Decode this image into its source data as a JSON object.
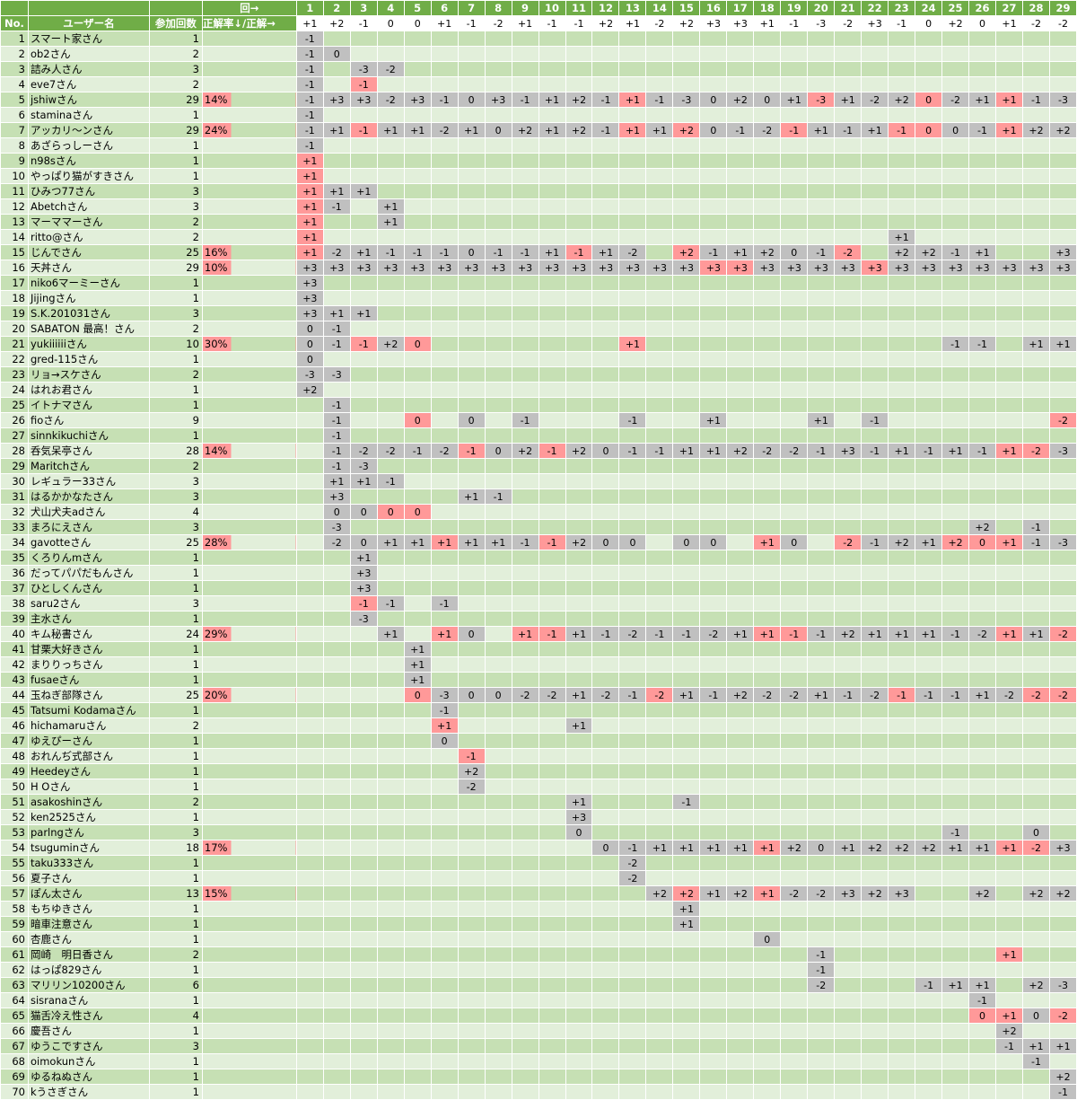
{
  "header": {
    "round_arrow": "回→",
    "no": "No.",
    "user": "ユーザー名",
    "count": "参加回数",
    "rate": "正解率↓/正解→",
    "rounds": [
      "1",
      "2",
      "3",
      "4",
      "5",
      "6",
      "7",
      "8",
      "9",
      "10",
      "11",
      "12",
      "13",
      "14",
      "15",
      "16",
      "17",
      "18",
      "19",
      "20",
      "21",
      "22",
      "23",
      "24",
      "25",
      "26",
      "27",
      "28",
      "29"
    ]
  },
  "answers": [
    "+1",
    "+2",
    "-1",
    "0",
    "0",
    "+1",
    "-1",
    "-2",
    "+1",
    "-1",
    "-1",
    "+2",
    "+1",
    "-2",
    "+2",
    "+3",
    "+3",
    "+1",
    "-1",
    "-3",
    "-2",
    "+3",
    "-1",
    "0",
    "+2",
    "0",
    "+1",
    "-2",
    "-2"
  ],
  "users": [
    {
      "no": "1",
      "name": "スマート家さん",
      "count": "1",
      "rate": "",
      "cells": {
        "1": "-1"
      }
    },
    {
      "no": "2",
      "name": "ob2さん",
      "count": "2",
      "rate": "",
      "cells": {
        "1": "-1",
        "2": "0"
      }
    },
    {
      "no": "3",
      "name": "詰み人さん",
      "count": "3",
      "rate": "",
      "cells": {
        "1": "-1",
        "3": "-3",
        "4": "-2"
      }
    },
    {
      "no": "4",
      "name": "eve7さん",
      "count": "2",
      "rate": "",
      "cells": {
        "1": "-1",
        "3": "-1"
      }
    },
    {
      "no": "5",
      "name": "jshiwさん",
      "count": "29",
      "rate": "14%",
      "cells": {
        "1": "-1",
        "2": "+3",
        "3": "+3",
        "4": "-2",
        "5": "+3",
        "6": "-1",
        "7": "0",
        "8": "+3",
        "9": "-1",
        "10": "+1",
        "11": "+2",
        "12": "-1",
        "13": "+1",
        "14": "-1",
        "15": "-3",
        "16": "0",
        "17": "+2",
        "18": "0",
        "19": "+1",
        "20": "-3",
        "21": "+1",
        "22": "-2",
        "23": "+2",
        "24": "0",
        "25": "-2",
        "26": "+1",
        "27": "+1",
        "28": "-1",
        "29": "-3"
      }
    },
    {
      "no": "6",
      "name": "staminaさん",
      "count": "1",
      "rate": "",
      "cells": {
        "1": "-1"
      }
    },
    {
      "no": "7",
      "name": "アッカリ～ンさん",
      "count": "29",
      "rate": "24%",
      "cells": {
        "1": "-1",
        "2": "+1",
        "3": "-1",
        "4": "+1",
        "5": "+1",
        "6": "-2",
        "7": "+1",
        "8": "0",
        "9": "+2",
        "10": "+1",
        "11": "+2",
        "12": "-1",
        "13": "+1",
        "14": "+1",
        "15": "+2",
        "16": "0",
        "17": "-1",
        "18": "-2",
        "19": "-1",
        "20": "+1",
        "21": "-1",
        "22": "+1",
        "23": "-1",
        "24": "0",
        "25": "0",
        "26": "-1",
        "27": "+1",
        "28": "+2",
        "29": "+2"
      }
    },
    {
      "no": "8",
      "name": "あざらっしーさん",
      "count": "1",
      "rate": "",
      "cells": {
        "1": "-1"
      }
    },
    {
      "no": "9",
      "name": "n98sさん",
      "count": "1",
      "rate": "",
      "cells": {
        "1": "+1"
      }
    },
    {
      "no": "10",
      "name": "やっぱり猫がすきさん",
      "count": "1",
      "rate": "",
      "cells": {
        "1": "+1"
      }
    },
    {
      "no": "11",
      "name": "ひみつ77さん",
      "count": "3",
      "rate": "",
      "cells": {
        "1": "+1",
        "2": "+1",
        "3": "+1"
      }
    },
    {
      "no": "12",
      "name": "Abetchさん",
      "count": "3",
      "rate": "",
      "cells": {
        "1": "+1",
        "2": "-1",
        "4": "+1"
      }
    },
    {
      "no": "13",
      "name": "マーママーさん",
      "count": "2",
      "rate": "",
      "cells": {
        "1": "+1",
        "4": "+1"
      }
    },
    {
      "no": "14",
      "name": "ritto@さん",
      "count": "2",
      "rate": "",
      "cells": {
        "1": "+1",
        "23": "+1"
      }
    },
    {
      "no": "15",
      "name": "じんでさん",
      "count": "25",
      "rate": "16%",
      "cells": {
        "1": "+1",
        "2": "-2",
        "3": "+1",
        "4": "-1",
        "5": "-1",
        "6": "-1",
        "7": "0",
        "8": "-1",
        "9": "-1",
        "10": "+1",
        "11": "-1",
        "12": "+1",
        "13": "-2",
        "15": "+2",
        "16": "-1",
        "17": "+1",
        "18": "+2",
        "19": "0",
        "20": "-1",
        "21": "-2",
        "23": "+2",
        "24": "+2",
        "25": "-1",
        "26": "+1",
        "29": "+3"
      }
    },
    {
      "no": "16",
      "name": "天丼さん",
      "count": "29",
      "rate": "10%",
      "cells": {
        "1": "+3",
        "2": "+3",
        "3": "+3",
        "4": "+3",
        "5": "+3",
        "6": "+3",
        "7": "+3",
        "8": "+3",
        "9": "+3",
        "10": "+3",
        "11": "+3",
        "12": "+3",
        "13": "+3",
        "14": "+3",
        "15": "+3",
        "16": "+3",
        "17": "+3",
        "18": "+3",
        "19": "+3",
        "20": "+3",
        "21": "+3",
        "22": "+3",
        "23": "+3",
        "24": "+3",
        "25": "+3",
        "26": "+3",
        "27": "+3",
        "28": "+3",
        "29": "+3"
      }
    },
    {
      "no": "17",
      "name": "niko6マーミーさん",
      "count": "1",
      "rate": "",
      "cells": {
        "1": "+3"
      }
    },
    {
      "no": "18",
      "name": "Jijingさん",
      "count": "1",
      "rate": "",
      "cells": {
        "1": "+3"
      }
    },
    {
      "no": "19",
      "name": "S.K.201031さん",
      "count": "3",
      "rate": "",
      "cells": {
        "1": "+3",
        "2": "+1",
        "3": "+1"
      }
    },
    {
      "no": "20",
      "name": "SABATON 最高！さん",
      "count": "2",
      "rate": "",
      "cells": {
        "1": "0",
        "2": "-1"
      }
    },
    {
      "no": "21",
      "name": "yukiiiiiiさん",
      "count": "10",
      "rate": "30%",
      "cells": {
        "1": "0",
        "2": "-1",
        "3": "-1",
        "4": "+2",
        "5": "0",
        "13": "+1",
        "25": "-1",
        "26": "-1",
        "28": "+1",
        "29": "+1"
      }
    },
    {
      "no": "22",
      "name": "gred-115さん",
      "count": "1",
      "rate": "",
      "cells": {
        "1": "0"
      }
    },
    {
      "no": "23",
      "name": "リョ→スケさん",
      "count": "2",
      "rate": "",
      "cells": {
        "1": "-3",
        "2": "-3"
      }
    },
    {
      "no": "24",
      "name": "はれお君さん",
      "count": "1",
      "rate": "",
      "cells": {
        "1": "+2"
      }
    },
    {
      "no": "25",
      "name": "イトナマさん",
      "count": "1",
      "rate": "",
      "cells": {
        "2": "-1"
      }
    },
    {
      "no": "26",
      "name": "fioさん",
      "count": "9",
      "rate": "",
      "cells": {
        "2": "-1",
        "5": "0",
        "7": "0",
        "9": "-1",
        "13": "-1",
        "16": "+1",
        "20": "+1",
        "22": "-1",
        "29": "-2"
      }
    },
    {
      "no": "27",
      "name": "sinnkikuchiさん",
      "count": "1",
      "rate": "",
      "cells": {
        "2": "-1"
      }
    },
    {
      "no": "28",
      "name": "呑気呆亭さん",
      "count": "28",
      "rate": "14%",
      "cells": {
        "2": "-1",
        "3": "-2",
        "4": "-2",
        "5": "-1",
        "6": "-2",
        "7": "-1",
        "8": "0",
        "9": "+2",
        "10": "-1",
        "11": "+2",
        "12": "0",
        "13": "-1",
        "14": "-1",
        "15": "+1",
        "16": "+1",
        "17": "+2",
        "18": "-2",
        "19": "-2",
        "20": "-1",
        "21": "+3",
        "22": "-1",
        "23": "+1",
        "24": "-1",
        "25": "+1",
        "26": "-1",
        "27": "+1",
        "28": "-2",
        "29": "-3"
      }
    },
    {
      "no": "29",
      "name": "Maritchさん",
      "count": "2",
      "rate": "",
      "cells": {
        "2": "-1",
        "3": "-3"
      }
    },
    {
      "no": "30",
      "name": "レギュラー33さん",
      "count": "3",
      "rate": "",
      "cells": {
        "2": "+1",
        "3": "+1",
        "4": "-1"
      }
    },
    {
      "no": "31",
      "name": "はるかかなたさん",
      "count": "3",
      "rate": "",
      "cells": {
        "2": "+3",
        "7": "+1",
        "8": "-1"
      }
    },
    {
      "no": "32",
      "name": "犬山犬夫adさん",
      "count": "4",
      "rate": "",
      "cells": {
        "2": "0",
        "3": "0",
        "4": "0",
        "5": "0"
      }
    },
    {
      "no": "33",
      "name": "まろにえさん",
      "count": "3",
      "rate": "",
      "cells": {
        "2": "-3",
        "26": "+2",
        "28": "-1"
      }
    },
    {
      "no": "34",
      "name": "gavotteさん",
      "count": "25",
      "rate": "28%",
      "cells": {
        "2": "-2",
        "3": "0",
        "4": "+1",
        "5": "+1",
        "6": "+1",
        "7": "+1",
        "8": "+1",
        "9": "-1",
        "10": "-1",
        "11": "+2",
        "12": "0",
        "13": "0",
        "15": "0",
        "16": "0",
        "18": "+1",
        "19": "0",
        "21": "-2",
        "22": "-1",
        "23": "+2",
        "24": "+1",
        "25": "+2",
        "26": "0",
        "27": "+1",
        "28": "-1",
        "29": "-3"
      }
    },
    {
      "no": "35",
      "name": "くろりんmさん",
      "count": "1",
      "rate": "",
      "cells": {
        "3": "+1"
      }
    },
    {
      "no": "36",
      "name": "だってパパだもんさん",
      "count": "1",
      "rate": "",
      "cells": {
        "3": "+3"
      }
    },
    {
      "no": "37",
      "name": "ひとしくんさん",
      "count": "1",
      "rate": "",
      "cells": {
        "3": "+3"
      }
    },
    {
      "no": "38",
      "name": "saru2さん",
      "count": "3",
      "rate": "",
      "cells": {
        "3": "-1",
        "4": "-1",
        "6": "-1"
      }
    },
    {
      "no": "39",
      "name": "主水さん",
      "count": "1",
      "rate": "",
      "cells": {
        "3": "-3"
      }
    },
    {
      "no": "40",
      "name": "キム秘書さん",
      "count": "24",
      "rate": "29%",
      "cells": {
        "4": "+1",
        "6": "+1",
        "7": "0",
        "9": "+1",
        "10": "-1",
        "11": "+1",
        "12": "-1",
        "13": "-2",
        "14": "-1",
        "15": "-1",
        "16": "-2",
        "17": "+1",
        "18": "+1",
        "19": "-1",
        "20": "-1",
        "21": "+2",
        "22": "+1",
        "23": "+1",
        "24": "+1",
        "25": "-1",
        "26": "-2",
        "27": "+1",
        "28": "+1",
        "29": "-2"
      }
    },
    {
      "no": "41",
      "name": "甘栗大好きさん",
      "count": "1",
      "rate": "",
      "cells": {
        "5": "+1"
      }
    },
    {
      "no": "42",
      "name": "まりりっちさん",
      "count": "1",
      "rate": "",
      "cells": {
        "5": "+1"
      }
    },
    {
      "no": "43",
      "name": "fusaeさん",
      "count": "1",
      "rate": "",
      "cells": {
        "5": "+1"
      }
    },
    {
      "no": "44",
      "name": "玉ねぎ部隊さん",
      "count": "25",
      "rate": "20%",
      "cells": {
        "5": "0",
        "6": "-3",
        "7": "0",
        "8": "0",
        "9": "-2",
        "10": "-2",
        "11": "+1",
        "12": "-2",
        "13": "-1",
        "14": "-2",
        "15": "+1",
        "16": "-1",
        "17": "+2",
        "18": "-2",
        "19": "-2",
        "20": "+1",
        "21": "-1",
        "22": "-2",
        "23": "-1",
        "24": "-1",
        "25": "-1",
        "26": "+1",
        "27": "-2",
        "28": "-2",
        "29": "-2"
      }
    },
    {
      "no": "45",
      "name": "Tatsumi Kodamaさん",
      "count": "1",
      "rate": "",
      "cells": {
        "6": "-1"
      }
    },
    {
      "no": "46",
      "name": "hichamaruさん",
      "count": "2",
      "rate": "",
      "cells": {
        "6": "+1",
        "11": "+1"
      }
    },
    {
      "no": "47",
      "name": "ゆえぴーさん",
      "count": "1",
      "rate": "",
      "cells": {
        "6": "0"
      }
    },
    {
      "no": "48",
      "name": "おれんぢ式部さん",
      "count": "1",
      "rate": "",
      "cells": {
        "7": "-1"
      }
    },
    {
      "no": "49",
      "name": "Heedeyさん",
      "count": "1",
      "rate": "",
      "cells": {
        "7": "+2"
      }
    },
    {
      "no": "50",
      "name": "H Oさん",
      "count": "1",
      "rate": "",
      "cells": {
        "7": "-2"
      }
    },
    {
      "no": "51",
      "name": "asakoshinさん",
      "count": "2",
      "rate": "",
      "cells": {
        "11": "+1",
        "15": "-1"
      }
    },
    {
      "no": "52",
      "name": "ken2525さん",
      "count": "1",
      "rate": "",
      "cells": {
        "11": "+3"
      }
    },
    {
      "no": "53",
      "name": "parlngさん",
      "count": "3",
      "rate": "",
      "cells": {
        "11": "0",
        "25": "-1",
        "28": "0"
      }
    },
    {
      "no": "54",
      "name": "tsuguminさん",
      "count": "18",
      "rate": "17%",
      "cells": {
        "12": "0",
        "13": "-1",
        "14": "+1",
        "15": "+1",
        "16": "+1",
        "17": "+1",
        "18": "+1",
        "19": "+2",
        "20": "0",
        "21": "+1",
        "22": "+2",
        "23": "+2",
        "24": "+2",
        "25": "+1",
        "26": "+1",
        "27": "+1",
        "28": "-2",
        "29": "+3"
      }
    },
    {
      "no": "55",
      "name": "taku333さん",
      "count": "1",
      "rate": "",
      "cells": {
        "13": "-2"
      }
    },
    {
      "no": "56",
      "name": "夏子さん",
      "count": "1",
      "rate": "",
      "cells": {
        "13": "-2"
      }
    },
    {
      "no": "57",
      "name": "ぽん太さん",
      "count": "13",
      "rate": "15%",
      "cells": {
        "14": "+2",
        "15": "+2",
        "16": "+1",
        "17": "+2",
        "18": "+1",
        "19": "-2",
        "20": "-2",
        "21": "+3",
        "22": "+2",
        "23": "+3",
        "26": "+2",
        "28": "+2",
        "29": "+2"
      }
    },
    {
      "no": "58",
      "name": "もちゆきさん",
      "count": "1",
      "rate": "",
      "cells": {
        "15": "+1"
      }
    },
    {
      "no": "59",
      "name": "暗車注意さん",
      "count": "1",
      "rate": "",
      "cells": {
        "15": "+1"
      }
    },
    {
      "no": "60",
      "name": "杏鹿さん",
      "count": "1",
      "rate": "",
      "cells": {
        "18": "0"
      }
    },
    {
      "no": "61",
      "name": "岡崎　明日香さん",
      "count": "2",
      "rate": "",
      "cells": {
        "20": "-1",
        "27": "+1"
      }
    },
    {
      "no": "62",
      "name": "はっぱ829さん",
      "count": "1",
      "rate": "",
      "cells": {
        "20": "-1"
      }
    },
    {
      "no": "63",
      "name": "マリリン10200さん",
      "count": "6",
      "rate": "",
      "cells": {
        "20": "-2",
        "24": "-1",
        "25": "+1",
        "26": "+1",
        "28": "+2",
        "29": "-3"
      }
    },
    {
      "no": "64",
      "name": "sisranaさん",
      "count": "1",
      "rate": "",
      "cells": {
        "26": "-1"
      }
    },
    {
      "no": "65",
      "name": "猫舌冷え性さん",
      "count": "4",
      "rate": "",
      "cells": {
        "26": "0",
        "27": "+1",
        "28": "0",
        "29": "-2"
      }
    },
    {
      "no": "66",
      "name": "慶吾さん",
      "count": "1",
      "rate": "",
      "cells": {
        "27": "+2"
      }
    },
    {
      "no": "67",
      "name": "ゆうこですさん",
      "count": "3",
      "rate": "",
      "cells": {
        "27": "-1",
        "28": "+1",
        "29": "+1"
      }
    },
    {
      "no": "68",
      "name": "oimokunさん",
      "count": "1",
      "rate": "",
      "cells": {
        "28": "-1"
      }
    },
    {
      "no": "69",
      "name": "ゆるねぬさん",
      "count": "1",
      "rate": "",
      "cells": {
        "29": "+2"
      }
    },
    {
      "no": "70",
      "name": "kうさぎさん",
      "count": "1",
      "rate": "",
      "cells": {
        "29": "-1"
      }
    }
  ],
  "colors": {
    "header_green": "#70ad47",
    "row_odd": "#c6e0b4",
    "row_even": "#e2efda",
    "miss": "#c0c0c0",
    "hit": "#ff9999"
  }
}
